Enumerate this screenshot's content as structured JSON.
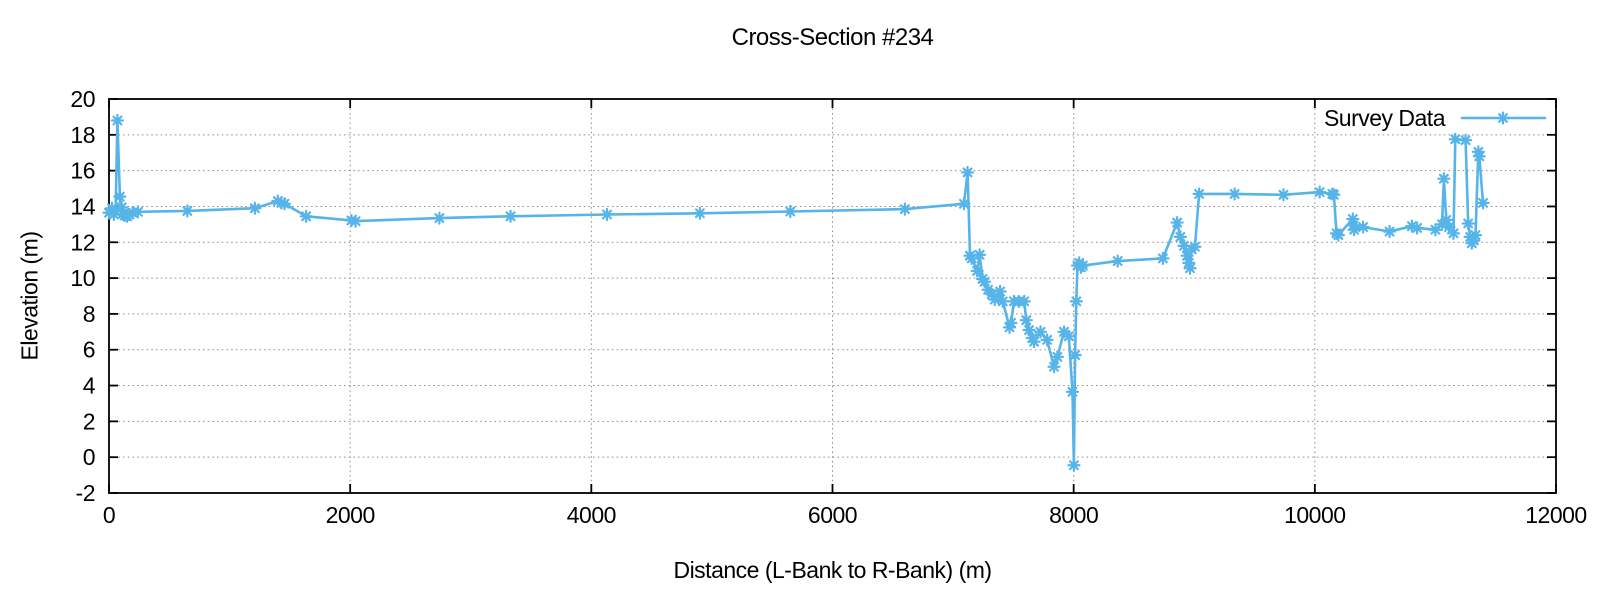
{
  "title": "Cross-Section #234",
  "legend": {
    "label": "Survey Data",
    "position": "top-right"
  },
  "axes": {
    "x": {
      "label": "Distance (L-Bank to R-Bank) (m)",
      "min": 0,
      "max": 12000,
      "ticks": [
        0,
        2000,
        4000,
        6000,
        8000,
        10000,
        12000
      ]
    },
    "y": {
      "label": "Elevation (m)",
      "min": -2,
      "max": 20,
      "ticks": [
        -2,
        0,
        2,
        4,
        6,
        8,
        10,
        12,
        14,
        16,
        18,
        20
      ]
    }
  },
  "style": {
    "series_color": "#56b4e9",
    "grid_color": "#8a8a8a",
    "border_color": "#000000",
    "text_color": "#000000",
    "marker": "asterisk",
    "grid": "dotted"
  },
  "chart_data": {
    "type": "line",
    "title": "Cross-Section #234",
    "xlabel": "Distance (L-Bank to R-Bank) (m)",
    "ylabel": "Elevation (m)",
    "xlim": [
      0,
      12000
    ],
    "ylim": [
      -2,
      20
    ],
    "xticks": [
      0,
      2000,
      4000,
      6000,
      8000,
      10000,
      12000
    ],
    "yticks": [
      -2,
      0,
      2,
      4,
      6,
      8,
      10,
      12,
      14,
      16,
      18,
      20
    ],
    "grid": true,
    "legend_position": "top-right",
    "series": [
      {
        "name": "Survey Data",
        "color": "#56b4e9",
        "marker": "asterisk",
        "points": [
          [
            0,
            13.65
          ],
          [
            25,
            13.9
          ],
          [
            40,
            13.55
          ],
          [
            55,
            13.75
          ],
          [
            70,
            18.8
          ],
          [
            90,
            14.55
          ],
          [
            105,
            13.95
          ],
          [
            115,
            13.6
          ],
          [
            130,
            13.5
          ],
          [
            150,
            13.45
          ],
          [
            170,
            13.55
          ],
          [
            195,
            13.65
          ],
          [
            240,
            13.7
          ],
          [
            650,
            13.75
          ],
          [
            1210,
            13.9
          ],
          [
            1400,
            14.3
          ],
          [
            1430,
            14.2
          ],
          [
            1455,
            14.15
          ],
          [
            1635,
            13.45
          ],
          [
            2010,
            13.22
          ],
          [
            2045,
            13.18
          ],
          [
            2740,
            13.35
          ],
          [
            3330,
            13.45
          ],
          [
            4130,
            13.55
          ],
          [
            4900,
            13.62
          ],
          [
            5650,
            13.72
          ],
          [
            6600,
            13.85
          ],
          [
            7090,
            14.15
          ],
          [
            7120,
            15.9
          ],
          [
            7140,
            11.25
          ],
          [
            7155,
            11.1
          ],
          [
            7200,
            10.4
          ],
          [
            7220,
            11.3
          ],
          [
            7245,
            9.95
          ],
          [
            7262,
            9.8
          ],
          [
            7290,
            9.35
          ],
          [
            7320,
            9.1
          ],
          [
            7345,
            8.8
          ],
          [
            7390,
            9.25
          ],
          [
            7412,
            8.7
          ],
          [
            7468,
            7.25
          ],
          [
            7480,
            7.5
          ],
          [
            7505,
            8.7
          ],
          [
            7545,
            8.7
          ],
          [
            7590,
            8.7
          ],
          [
            7607,
            7.65
          ],
          [
            7630,
            7.1
          ],
          [
            7656,
            6.65
          ],
          [
            7672,
            6.45
          ],
          [
            7725,
            7.0
          ],
          [
            7780,
            6.55
          ],
          [
            7837,
            5.05
          ],
          [
            7865,
            5.6
          ],
          [
            7920,
            7.0
          ],
          [
            7960,
            6.75
          ],
          [
            7990,
            3.65
          ],
          [
            8002,
            -0.45
          ],
          [
            8012,
            5.7
          ],
          [
            8022,
            8.7
          ],
          [
            8032,
            10.7
          ],
          [
            8046,
            10.85
          ],
          [
            8060,
            10.6
          ],
          [
            8076,
            10.7
          ],
          [
            8365,
            10.95
          ],
          [
            8740,
            11.1
          ],
          [
            8858,
            13.1
          ],
          [
            8885,
            12.3
          ],
          [
            8915,
            11.8
          ],
          [
            8940,
            11.25
          ],
          [
            8955,
            10.85
          ],
          [
            8965,
            10.55
          ],
          [
            8978,
            11.6
          ],
          [
            9005,
            11.75
          ],
          [
            9040,
            14.7
          ],
          [
            9335,
            14.7
          ],
          [
            9740,
            14.65
          ],
          [
            10040,
            14.8
          ],
          [
            10145,
            14.7
          ],
          [
            10158,
            14.65
          ],
          [
            10180,
            12.5
          ],
          [
            10195,
            12.4
          ],
          [
            10315,
            13.3
          ],
          [
            10320,
            12.95
          ],
          [
            10326,
            12.7
          ],
          [
            10400,
            12.85
          ],
          [
            10620,
            12.6
          ],
          [
            10805,
            12.9
          ],
          [
            10848,
            12.8
          ],
          [
            11000,
            12.7
          ],
          [
            11055,
            13.0
          ],
          [
            11070,
            15.55
          ],
          [
            11090,
            13.25
          ],
          [
            11112,
            12.85
          ],
          [
            11150,
            12.5
          ],
          [
            11165,
            17.75
          ],
          [
            11250,
            17.7
          ],
          [
            11272,
            13.05
          ],
          [
            11288,
            12.3
          ],
          [
            11302,
            11.95
          ],
          [
            11318,
            12.1
          ],
          [
            11332,
            12.4
          ],
          [
            11356,
            17.05
          ],
          [
            11364,
            16.8
          ],
          [
            11395,
            14.2
          ]
        ]
      }
    ]
  }
}
